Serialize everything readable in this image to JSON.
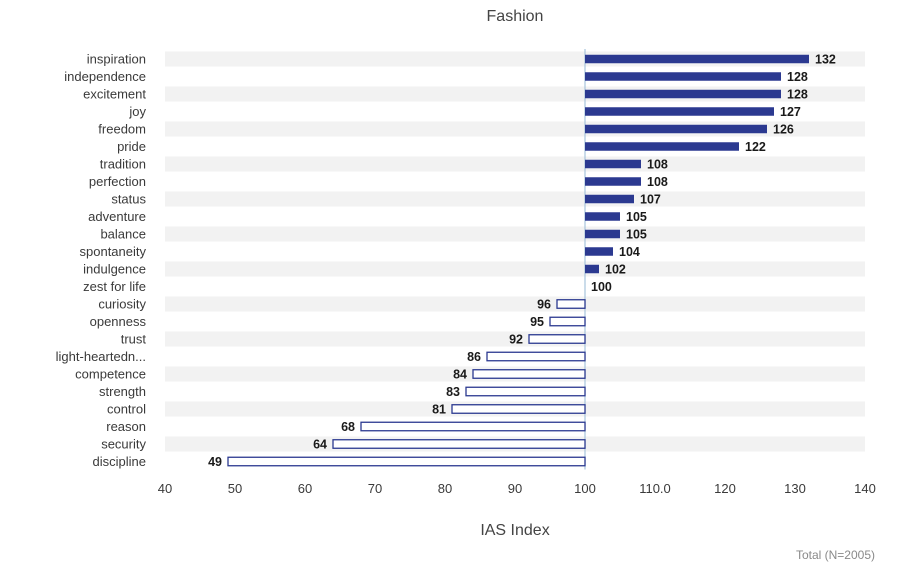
{
  "chart_data": {
    "type": "bar",
    "orientation": "horizontal",
    "title": "Fashion",
    "xlabel": "IAS Index",
    "footnote": "Total (N=2005)",
    "baseline": 100,
    "xlim": [
      40,
      140
    ],
    "xticks": [
      "40",
      "50",
      "60",
      "70",
      "80",
      "90",
      "100",
      "110.0",
      "120",
      "130",
      "140"
    ],
    "xtick_values": [
      40,
      50,
      60,
      70,
      80,
      90,
      100,
      110,
      120,
      130,
      140
    ],
    "categories": [
      "inspiration",
      "independence",
      "excitement",
      "joy",
      "freedom",
      "pride",
      "tradition",
      "perfection",
      "status",
      "adventure",
      "balance",
      "spontaneity",
      "indulgence",
      "zest for life",
      "curiosity",
      "openness",
      "trust",
      "light-heartedn...",
      "competence",
      "strength",
      "control",
      "reason",
      "security",
      "discipline"
    ],
    "values": [
      132,
      128,
      128,
      127,
      126,
      122,
      108,
      108,
      107,
      105,
      105,
      104,
      102,
      100,
      96,
      95,
      92,
      86,
      84,
      83,
      81,
      68,
      64,
      49
    ],
    "value_labels": [
      "132",
      "128",
      "128",
      "127",
      "126",
      "122",
      "108",
      "108",
      "107",
      "105",
      "105",
      "104",
      "102",
      "100",
      "96",
      "95",
      "92",
      "86",
      "84",
      "83",
      "81",
      "68",
      "64",
      "49"
    ],
    "colors": {
      "above": "#2b3990",
      "below_fill": "#ffffff",
      "below_stroke": "#2b3990",
      "band": "#f2f2f2",
      "baseline": "#a8c4dc"
    },
    "grid": false,
    "legend": "none"
  }
}
